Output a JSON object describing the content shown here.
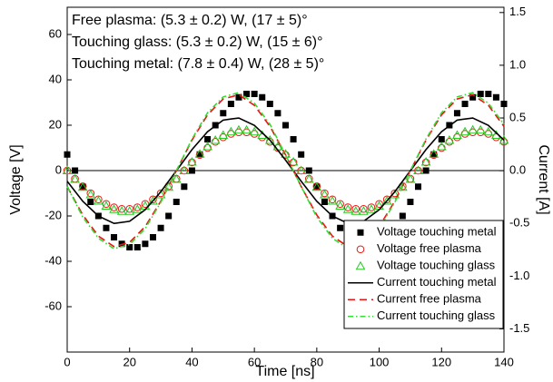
{
  "chart_data": {
    "type": "line",
    "annotations": [
      "Free plasma: (5.3 ± 0.2) W, (17 ± 5)°",
      "Touching glass: (5.3 ± 0.2) W, (15 ± 6)°",
      "Touching metal: (7.8 ± 0.4) W, (28 ± 5)°"
    ],
    "xlabel": "Time [ns]",
    "ylabel": "Voltage [V]",
    "y2label": "Current [A]",
    "xlim": [
      0,
      140
    ],
    "xticks": [
      0,
      20,
      40,
      60,
      80,
      100,
      120,
      140
    ],
    "ylim": [
      -80,
      72
    ],
    "yticks": [
      -60,
      -40,
      -20,
      0,
      20,
      40,
      60
    ],
    "y2lim": [
      -1.72,
      1.55
    ],
    "y2ticks": [
      -1.5,
      {
        "value": -1,
        "label": "-1.0"
      },
      -0.5,
      {
        "value": 0,
        "label": "0.0"
      },
      0.5,
      {
        "value": 1,
        "label": "1.0"
      },
      1.5
    ],
    "legend": "lower right",
    "series": [
      {
        "name": "Voltage touching metal",
        "color": "#000000",
        "marker": "square",
        "x": [
          0,
          2.5,
          5,
          7.5,
          10,
          12.5,
          15,
          17.5,
          20,
          22.5,
          25,
          27.5,
          30,
          32.5,
          35,
          37.5,
          40,
          42.5,
          45,
          47.5,
          50,
          52.5,
          55,
          57.5,
          60,
          62.5,
          65,
          67.5,
          70,
          72.5,
          75,
          77.5,
          80,
          82.5,
          85,
          87.5,
          90,
          92.5,
          95,
          97.5,
          100,
          102.5,
          105,
          107.5,
          110,
          112.5,
          115,
          117.5,
          120,
          122.5,
          125,
          127.5,
          130,
          132.5,
          135,
          137.5,
          140
        ],
        "values": [
          7.1,
          0,
          -7.1,
          -13.8,
          -20,
          -25.3,
          -29.4,
          -32.3,
          -33.8,
          -33.8,
          -32.3,
          -29.4,
          -25.3,
          -20,
          -13.8,
          -7.1,
          0,
          7.1,
          13.8,
          20,
          25.3,
          29.4,
          32.3,
          33.8,
          33.8,
          32.3,
          29.4,
          25.3,
          20,
          13.8,
          7.1,
          0,
          -7.1,
          -13.8,
          -20,
          -25.3,
          -29.4,
          -32.3,
          -33.8,
          -33.8,
          -32.3,
          -29.4,
          -25.3,
          -20,
          -13.8,
          -7.1,
          0,
          7.1,
          13.8,
          20,
          25.3,
          29.4,
          32.3,
          33.8,
          33.8,
          32.3,
          29.4
        ]
      },
      {
        "name": "Voltage free plasma",
        "color": "#ee1111",
        "marker": "circle",
        "x": [
          0,
          2.5,
          5,
          7.5,
          10,
          12.5,
          15,
          17.5,
          20,
          22.5,
          25,
          27.5,
          30,
          32.5,
          35,
          37.5,
          40,
          42.5,
          45,
          47.5,
          50,
          52.5,
          55,
          57.5,
          60,
          62.5,
          65,
          67.5,
          70,
          72.5,
          75,
          77.5,
          80,
          82.5,
          85,
          87.5,
          90,
          92.5,
          95,
          97.5,
          100,
          102.5,
          105,
          107.5,
          110,
          112.5,
          115,
          117.5,
          120,
          122.5,
          125,
          127.5,
          130,
          132.5,
          135,
          137.5,
          140
        ],
        "values": [
          0,
          -3.6,
          -6.9,
          -10,
          -12.7,
          -14.7,
          -16.2,
          -16.9,
          -16.9,
          -16.2,
          -14.7,
          -12.7,
          -10,
          -6.9,
          -3.6,
          0,
          3.6,
          6.9,
          10,
          12.7,
          14.7,
          16.2,
          16.9,
          16.9,
          16.2,
          14.7,
          12.7,
          10,
          6.9,
          3.6,
          0,
          -3.6,
          -6.9,
          -10,
          -12.7,
          -14.7,
          -16.2,
          -16.9,
          -16.9,
          -16.2,
          -14.7,
          -12.7,
          -10,
          -6.9,
          -3.6,
          0,
          3.6,
          6.9,
          10,
          12.7,
          14.7,
          16.2,
          16.9,
          16.9,
          16.2,
          14.7,
          12.7
        ]
      },
      {
        "name": "Voltage touching glass",
        "color": "#22cc22",
        "marker": "triangle",
        "x": [
          0,
          2.5,
          5,
          7.5,
          10,
          12.5,
          15,
          17.5,
          20,
          22.5,
          25,
          27.5,
          30,
          32.5,
          35,
          37.5,
          40,
          42.5,
          45,
          47.5,
          50,
          52.5,
          55,
          57.5,
          60,
          62.5,
          65,
          67.5,
          70,
          72.5,
          75,
          77.5,
          80,
          82.5,
          85,
          87.5,
          90,
          92.5,
          95,
          97.5,
          100,
          102.5,
          105,
          107.5,
          110,
          112.5,
          115,
          117.5,
          120,
          122.5,
          125,
          127.5,
          130,
          132.5,
          135,
          137.5,
          140
        ],
        "values": [
          0,
          -3.8,
          -7.3,
          -10.6,
          -13.4,
          -15.6,
          -17.1,
          -17.9,
          -17.9,
          -17.1,
          -15.6,
          -13.4,
          -10.6,
          -7.3,
          -3.8,
          0,
          3.8,
          7.3,
          10.6,
          13.4,
          15.6,
          17.1,
          17.9,
          17.9,
          17.1,
          15.6,
          13.4,
          10.6,
          7.3,
          3.8,
          0,
          -3.8,
          -7.3,
          -10.6,
          -13.4,
          -15.6,
          -17.1,
          -17.9,
          -17.9,
          -17.1,
          -15.6,
          -13.4,
          -10.6,
          -7.3,
          -3.8,
          0,
          3.8,
          7.3,
          10.6,
          13.4,
          15.6,
          17.1,
          17.9,
          17.9,
          17.1,
          15.6,
          13.4
        ]
      },
      {
        "name": "Current touching metal",
        "color": "#000000",
        "dash": "solid",
        "axis": "y2",
        "x": [
          0,
          5,
          10,
          15,
          20,
          25,
          30,
          35,
          40,
          45,
          50,
          55,
          60,
          65,
          70,
          75,
          80,
          85,
          90,
          95,
          100,
          105,
          110,
          115,
          120,
          125,
          130,
          135,
          140
        ],
        "values": [
          -0.1,
          -0.29,
          -0.43,
          -0.5,
          -0.48,
          -0.37,
          -0.2,
          0,
          0.2,
          0.37,
          0.48,
          0.5,
          0.43,
          0.29,
          0.1,
          -0.1,
          -0.29,
          -0.43,
          -0.5,
          -0.48,
          -0.37,
          -0.2,
          0,
          0.2,
          0.37,
          0.48,
          0.5,
          0.43,
          0.29
        ]
      },
      {
        "name": "Current free plasma",
        "color": "#ee1111",
        "dash": "dashed",
        "axis": "y2",
        "x": [
          0,
          5,
          10,
          15,
          20,
          25,
          30,
          35,
          40,
          45,
          50,
          55,
          60,
          65,
          70,
          75,
          80,
          85,
          90,
          95,
          100,
          105,
          110,
          115,
          120,
          125,
          130,
          135,
          140
        ],
        "values": [
          -0.15,
          -0.42,
          -0.62,
          -0.72,
          -0.68,
          -0.53,
          -0.29,
          0,
          0.29,
          0.53,
          0.68,
          0.72,
          0.62,
          0.42,
          0.15,
          -0.15,
          -0.42,
          -0.62,
          -0.72,
          -0.68,
          -0.53,
          -0.29,
          0,
          0.29,
          0.53,
          0.68,
          0.72,
          0.62,
          0.42
        ]
      },
      {
        "name": "Current touching glass",
        "color": "#33dd33",
        "dash": "dashdot",
        "axis": "y2",
        "x": [
          0,
          5,
          10,
          15,
          20,
          25,
          30,
          35,
          40,
          45,
          50,
          55,
          60,
          65,
          70,
          75,
          80,
          85,
          90,
          95,
          100,
          105,
          110,
          115,
          120,
          125,
          130,
          135,
          140
        ],
        "values": [
          -0.15,
          -0.44,
          -0.64,
          -0.74,
          -0.7,
          -0.55,
          -0.3,
          0,
          0.3,
          0.55,
          0.7,
          0.74,
          0.64,
          0.44,
          0.15,
          -0.15,
          -0.44,
          -0.64,
          -0.74,
          -0.7,
          -0.55,
          -0.3,
          0,
          0.3,
          0.55,
          0.7,
          0.74,
          0.64,
          0.44
        ]
      }
    ]
  }
}
